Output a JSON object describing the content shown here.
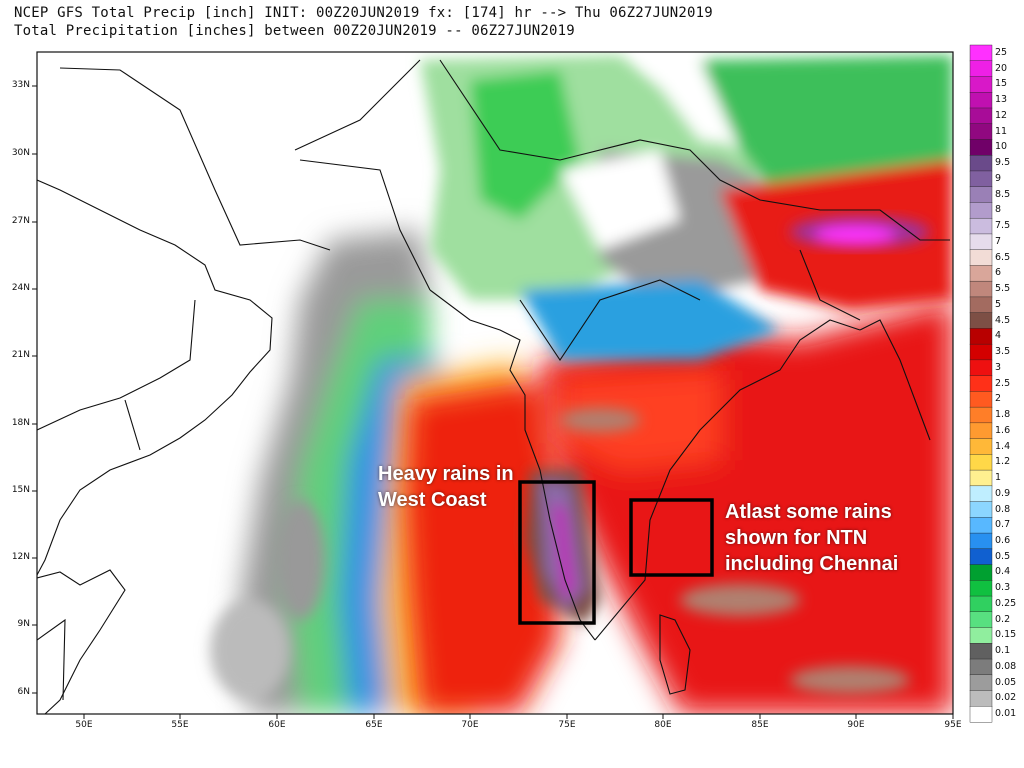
{
  "header": {
    "line1": "NCEP GFS Total Precip [inch] INIT: 00Z20JUN2019 fx: [174] hr --> Thu 06Z27JUN2019",
    "line2": "Total Precipitation [inches] between 00Z20JUN2019 -- 06Z27JUN2019"
  },
  "map": {
    "lat_labels": [
      "33N",
      "30N",
      "27N",
      "24N",
      "21N",
      "18N",
      "15N",
      "12N",
      "9N",
      "6N"
    ],
    "lon_labels": [
      "50E",
      "55E",
      "60E",
      "65E",
      "70E",
      "75E",
      "80E",
      "85E",
      "90E",
      "95E"
    ]
  },
  "annotations": {
    "west_coast": [
      "Heavy rains in",
      "West Coast"
    ],
    "ntn": [
      "Atlast some rains",
      "shown for NTN",
      "including Chennai"
    ]
  },
  "colorbar": {
    "levels": [
      "25",
      "20",
      "15",
      "13",
      "12",
      "11",
      "10",
      "9.5",
      "9",
      "8.5",
      "8",
      "7.5",
      "7",
      "6.5",
      "6",
      "5.5",
      "5",
      "4.5",
      "4",
      "3.5",
      "3",
      "2.5",
      "2",
      "1.8",
      "1.6",
      "1.4",
      "1.2",
      "1",
      "0.9",
      "0.8",
      "0.7",
      "0.6",
      "0.5",
      "0.4",
      "0.3",
      "0.25",
      "0.2",
      "0.15",
      "0.1",
      "0.08",
      "0.05",
      "0.02",
      "0.01"
    ],
    "colors": [
      "#ff30ff",
      "#ee20e6",
      "#d818c8",
      "#c010b0",
      "#a80c98",
      "#900880",
      "#700068",
      "#6a4a8a",
      "#8060a0",
      "#9a80b6",
      "#b29ccc",
      "#cbbcdf",
      "#e6dcec",
      "#f2dcd6",
      "#d9a69a",
      "#c0877c",
      "#a36b60",
      "#7d4f45",
      "#b80000",
      "#d40000",
      "#ee1010",
      "#ff3018",
      "#ff5a20",
      "#ff7e28",
      "#ff9a30",
      "#ffb838",
      "#ffd848",
      "#fff090",
      "#bfeeff",
      "#8cd6ff",
      "#58b8ff",
      "#2890f0",
      "#1060d0",
      "#00a030",
      "#10c040",
      "#30d060",
      "#58e080",
      "#90ee9e",
      "#606060",
      "#7c7c7c",
      "#9c9c9c",
      "#bcbcbc",
      "#ffffff"
    ]
  }
}
